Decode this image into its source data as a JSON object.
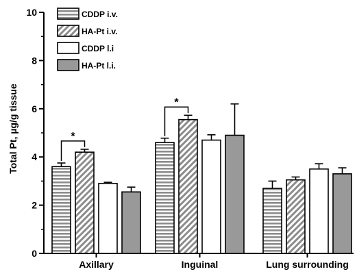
{
  "chart_data": {
    "type": "bar",
    "title": "",
    "xlabel": "",
    "ylabel": "Total Pt, µg/g tissue",
    "ylim": [
      0,
      10
    ],
    "yticks": [
      0,
      2,
      4,
      6,
      8,
      10
    ],
    "categories": [
      "Axillary",
      "Inguinal",
      "Lung surrounding"
    ],
    "series": [
      {
        "name": "CDDP i.v.",
        "pattern": "horizontal-stripes",
        "values": [
          3.6,
          4.6,
          2.7
        ],
        "errors": [
          0.15,
          0.18,
          0.3
        ]
      },
      {
        "name": "HA-Pt i.v.",
        "pattern": "diagonal-hatch",
        "values": [
          4.2,
          5.55,
          3.05
        ],
        "errors": [
          0.12,
          0.18,
          0.12
        ]
      },
      {
        "name": "CDDP l.i",
        "pattern": "white",
        "values": [
          2.9,
          4.7,
          3.5
        ],
        "errors": [
          0.05,
          0.22,
          0.22
        ]
      },
      {
        "name": "HA-Pt l.i.",
        "pattern": "gray",
        "values": [
          2.55,
          4.9,
          3.3
        ],
        "errors": [
          0.2,
          1.3,
          0.25
        ]
      }
    ],
    "annotations": [
      {
        "text": "*",
        "category_index": 0,
        "series": [
          0,
          1
        ]
      },
      {
        "text": "*",
        "category_index": 1,
        "series": [
          0,
          1
        ]
      }
    ],
    "legend_position": "top-left",
    "grid": false,
    "colors": {
      "gray_fill": "#999999",
      "stroke": "#000000"
    }
  }
}
